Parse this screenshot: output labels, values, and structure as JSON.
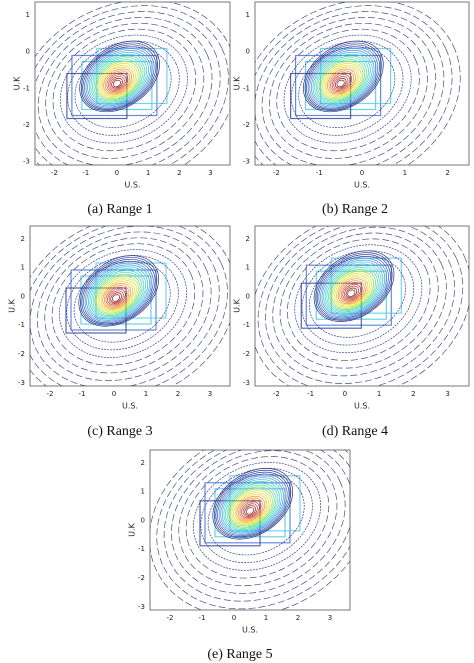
{
  "panels": [
    {
      "caption": "(a) Range 1",
      "xlabel": "U.S.",
      "ylabel": "U.K",
      "xticks": [
        "-2",
        "-1",
        "0",
        "1",
        "2",
        "3"
      ],
      "yticks": [
        "1",
        "0",
        "-1",
        "-2",
        "-3"
      ]
    },
    {
      "caption": "(b) Range 2",
      "xlabel": "U.S.",
      "ylabel": "U.K",
      "xticks": [
        "-2",
        "-1",
        "0",
        "1",
        "2"
      ],
      "yticks": [
        "1",
        "0",
        "-1",
        "-2",
        "-3"
      ]
    },
    {
      "caption": "(c) Range 3",
      "xlabel": "U.S.",
      "ylabel": "U.K",
      "xticks": [
        "-2",
        "-1",
        "0",
        "1",
        "2",
        "3"
      ],
      "yticks": [
        "2",
        "1",
        "0",
        "-1",
        "-2",
        "-3"
      ]
    },
    {
      "caption": "(d) Range 4",
      "xlabel": "U.S.",
      "ylabel": "U.K",
      "xticks": [
        "-2",
        "-1",
        "0",
        "1",
        "2",
        "3"
      ],
      "yticks": [
        "2",
        "1",
        "0",
        "-1",
        "-2",
        "-3"
      ]
    },
    {
      "caption": "(e) Range 5",
      "xlabel": "U.S.",
      "ylabel": "U.K",
      "xticks": [
        "-2",
        "-1",
        "0",
        "1",
        "2",
        "3"
      ],
      "yticks": [
        "2",
        "1",
        "0",
        "-1",
        "-2",
        "-3"
      ]
    }
  ]
}
